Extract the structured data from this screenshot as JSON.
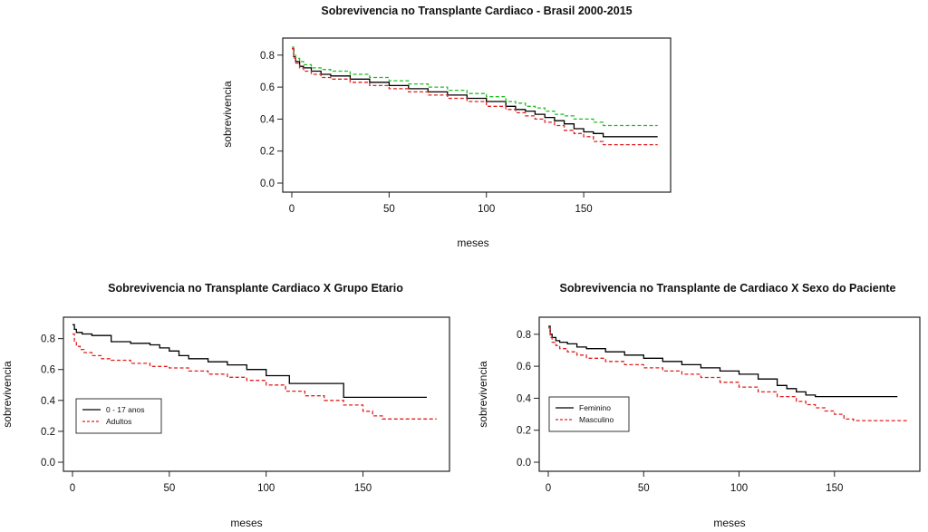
{
  "chart_data": [
    {
      "type": "line",
      "title": "Sobrevivencia no Transplante Cardiaco - Brasil 2000-2015",
      "xlabel": "meses",
      "ylabel": "sobrevivencia",
      "xlim": [
        0,
        190
      ],
      "ylim": [
        0,
        0.85
      ],
      "xticks": [
        0,
        50,
        100,
        150
      ],
      "yticks": [
        0.0,
        0.2,
        0.4,
        0.6,
        0.8
      ],
      "x_tick_labels": [
        "0",
        "50",
        "100",
        "150"
      ],
      "y_tick_labels": [
        "0.0",
        "0.2",
        "0.4",
        "0.6",
        "0.8"
      ],
      "grid": false,
      "series": [
        {
          "color": "#000000",
          "dash": "solid",
          "x": [
            0,
            1,
            2,
            4,
            6,
            10,
            15,
            20,
            30,
            40,
            50,
            60,
            70,
            80,
            90,
            100,
            110,
            115,
            120,
            125,
            130,
            135,
            140,
            145,
            150,
            155,
            160,
            170,
            188
          ],
          "y": [
            0.84,
            0.79,
            0.76,
            0.73,
            0.72,
            0.7,
            0.68,
            0.67,
            0.65,
            0.63,
            0.61,
            0.59,
            0.57,
            0.55,
            0.53,
            0.51,
            0.48,
            0.46,
            0.45,
            0.43,
            0.41,
            0.39,
            0.37,
            0.34,
            0.32,
            0.31,
            0.29,
            0.29,
            0.29
          ]
        },
        {
          "color": "#22bb22",
          "dash": "dashed",
          "x": [
            0,
            1,
            2,
            4,
            6,
            10,
            15,
            20,
            30,
            40,
            50,
            60,
            70,
            80,
            90,
            100,
            110,
            115,
            120,
            125,
            130,
            135,
            140,
            145,
            150,
            155,
            160,
            170,
            188
          ],
          "y": [
            0.85,
            0.8,
            0.78,
            0.76,
            0.74,
            0.72,
            0.71,
            0.7,
            0.68,
            0.66,
            0.64,
            0.62,
            0.6,
            0.58,
            0.56,
            0.54,
            0.51,
            0.5,
            0.48,
            0.47,
            0.45,
            0.43,
            0.42,
            0.4,
            0.4,
            0.38,
            0.36,
            0.36,
            0.36
          ]
        },
        {
          "color": "#e02020",
          "dash": "dashed",
          "x": [
            0,
            1,
            2,
            4,
            6,
            10,
            15,
            20,
            30,
            40,
            50,
            60,
            70,
            80,
            90,
            100,
            110,
            115,
            120,
            125,
            130,
            135,
            140,
            145,
            150,
            155,
            160,
            170,
            188
          ],
          "y": [
            0.84,
            0.78,
            0.75,
            0.72,
            0.7,
            0.68,
            0.66,
            0.65,
            0.63,
            0.61,
            0.59,
            0.57,
            0.55,
            0.53,
            0.51,
            0.48,
            0.46,
            0.44,
            0.42,
            0.4,
            0.38,
            0.36,
            0.33,
            0.31,
            0.29,
            0.26,
            0.24,
            0.24,
            0.24
          ]
        }
      ]
    },
    {
      "type": "line",
      "title": "Sobrevivencia no Transplante Cardiaco X Grupo Etario",
      "xlabel": "meses",
      "ylabel": "sobrevivencia",
      "xlim": [
        0,
        190
      ],
      "ylim": [
        0,
        0.88
      ],
      "xticks": [
        0,
        50,
        100,
        150
      ],
      "yticks": [
        0.0,
        0.2,
        0.4,
        0.6,
        0.8
      ],
      "x_tick_labels": [
        "0",
        "50",
        "100",
        "150"
      ],
      "y_tick_labels": [
        "0.0",
        "0.2",
        "0.4",
        "0.6",
        "0.8"
      ],
      "grid": false,
      "legend": {
        "position": "center-left",
        "entries": [
          "0 - 17 anos",
          "Adultos"
        ]
      },
      "series": [
        {
          "name": "0 - 17 anos",
          "color": "#000000",
          "dash": "solid",
          "x": [
            0,
            1,
            2,
            5,
            10,
            20,
            30,
            40,
            45,
            50,
            55,
            60,
            70,
            80,
            90,
            100,
            112,
            120,
            130,
            140,
            150,
            170,
            183
          ],
          "y": [
            0.89,
            0.86,
            0.84,
            0.83,
            0.82,
            0.78,
            0.77,
            0.76,
            0.74,
            0.72,
            0.69,
            0.67,
            0.65,
            0.63,
            0.6,
            0.56,
            0.51,
            0.51,
            0.51,
            0.42,
            0.42,
            0.42,
            0.42
          ]
        },
        {
          "name": "Adultos",
          "color": "#e02020",
          "dash": "dashed",
          "x": [
            0,
            1,
            2,
            4,
            6,
            10,
            15,
            20,
            30,
            40,
            50,
            60,
            70,
            80,
            90,
            100,
            110,
            120,
            130,
            140,
            150,
            155,
            160,
            170,
            188
          ],
          "y": [
            0.83,
            0.78,
            0.75,
            0.73,
            0.71,
            0.69,
            0.67,
            0.66,
            0.64,
            0.62,
            0.61,
            0.59,
            0.57,
            0.55,
            0.53,
            0.5,
            0.46,
            0.43,
            0.4,
            0.37,
            0.33,
            0.3,
            0.28,
            0.28,
            0.28
          ]
        }
      ]
    },
    {
      "type": "line",
      "title": "Sobrevivencia no Transplante de Cardiaco X Sexo do Paciente",
      "xlabel": "meses",
      "ylabel": "sobrevivencia",
      "xlim": [
        0,
        190
      ],
      "ylim": [
        0,
        0.85
      ],
      "xticks": [
        0,
        50,
        100,
        150
      ],
      "yticks": [
        0.0,
        0.2,
        0.4,
        0.6,
        0.8
      ],
      "x_tick_labels": [
        "0",
        "50",
        "100",
        "150"
      ],
      "y_tick_labels": [
        "0.0",
        "0.2",
        "0.4",
        "0.6",
        "0.8"
      ],
      "grid": false,
      "legend": {
        "position": "center-left",
        "entries": [
          "Feminino",
          "Masculino"
        ]
      },
      "series": [
        {
          "name": "Feminino",
          "color": "#000000",
          "dash": "solid",
          "x": [
            0,
            1,
            2,
            4,
            6,
            10,
            15,
            20,
            30,
            40,
            50,
            60,
            70,
            80,
            90,
            100,
            110,
            120,
            125,
            130,
            135,
            140,
            150,
            170,
            183
          ],
          "y": [
            0.85,
            0.8,
            0.78,
            0.76,
            0.75,
            0.74,
            0.72,
            0.71,
            0.69,
            0.67,
            0.65,
            0.63,
            0.61,
            0.59,
            0.57,
            0.55,
            0.52,
            0.48,
            0.46,
            0.44,
            0.42,
            0.41,
            0.41,
            0.41,
            0.41
          ]
        },
        {
          "name": "Masculino",
          "color": "#e02020",
          "dash": "dashed",
          "x": [
            0,
            1,
            2,
            4,
            6,
            10,
            15,
            20,
            30,
            40,
            50,
            60,
            70,
            80,
            90,
            100,
            110,
            120,
            130,
            135,
            140,
            145,
            150,
            155,
            160,
            170,
            188
          ],
          "y": [
            0.84,
            0.78,
            0.75,
            0.73,
            0.71,
            0.69,
            0.67,
            0.65,
            0.63,
            0.61,
            0.59,
            0.57,
            0.55,
            0.53,
            0.5,
            0.47,
            0.44,
            0.41,
            0.38,
            0.36,
            0.34,
            0.32,
            0.3,
            0.27,
            0.26,
            0.26,
            0.26
          ]
        }
      ]
    }
  ]
}
